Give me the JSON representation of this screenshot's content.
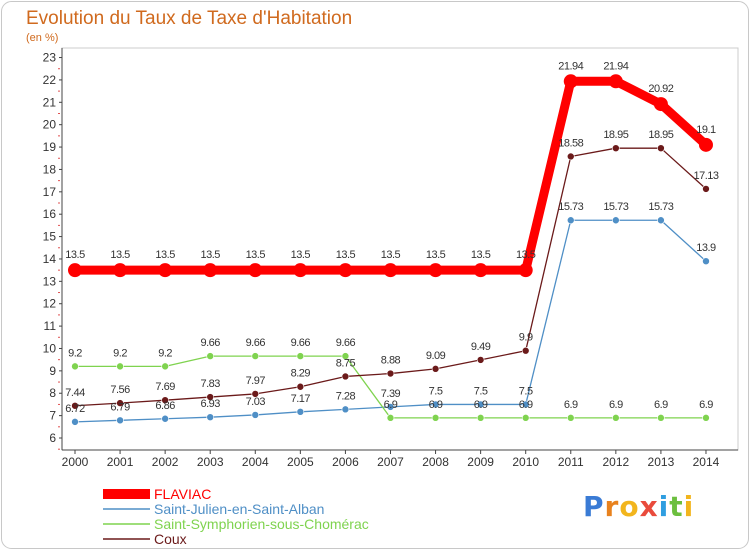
{
  "chart_data": {
    "type": "line",
    "title": "Evolution du Taux de Taxe d'Habitation",
    "subtitle": "(en %)",
    "x": [
      "2000",
      "2001",
      "2002",
      "2003",
      "2004",
      "2005",
      "2006",
      "2007",
      "2008",
      "2009",
      "2010",
      "2011",
      "2012",
      "2013",
      "2014"
    ],
    "ylim": [
      6,
      23
    ],
    "yticks": [
      6,
      7,
      8,
      9,
      10,
      11,
      12,
      13,
      14,
      15,
      16,
      17,
      18,
      19,
      20,
      21,
      22,
      23
    ],
    "grid": false,
    "legend_position": "bottom-left",
    "series": [
      {
        "name": "FLAVIAC",
        "color": "#ff0000",
        "values": [
          13.5,
          13.5,
          13.5,
          13.5,
          13.5,
          13.5,
          13.5,
          13.5,
          13.5,
          13.5,
          13.5,
          21.94,
          21.94,
          20.92,
          19.1
        ],
        "labels": [
          "13.5",
          "13.5",
          "13.5",
          "13.5",
          "13.5",
          "13.5",
          "13.5",
          "13.5",
          "13.5",
          "13.5",
          "13.5",
          "21.94",
          "21.94",
          "20.92",
          "19.1"
        ]
      },
      {
        "name": "Saint-Julien-en-Saint-Alban",
        "color": "#4f8fc6",
        "values": [
          6.72,
          6.79,
          6.86,
          6.93,
          7.03,
          7.17,
          7.28,
          7.39,
          7.5,
          7.5,
          7.5,
          15.73,
          15.73,
          15.73,
          13.9
        ],
        "labels": [
          "6.72",
          "6.79",
          "6.86",
          "6.93",
          "7.03",
          "7.17",
          "7.28",
          "7.39",
          "7.5",
          "7.5",
          "7.5",
          "15.73",
          "15.73",
          "15.73",
          "13.9"
        ]
      },
      {
        "name": "Saint-Symphorien-sous-Chomérac",
        "color": "#7fd34f",
        "values": [
          9.2,
          9.2,
          9.2,
          9.66,
          9.66,
          9.66,
          9.66,
          6.9,
          6.9,
          6.9,
          6.9,
          6.9,
          6.9,
          6.9,
          6.9
        ],
        "labels": [
          "9.2",
          "9.2",
          "9.2",
          "9.66",
          "9.66",
          "9.66",
          "9.66",
          "6.9",
          "6.9",
          "6.9",
          "6.9",
          "6.9",
          "6.9",
          "6.9",
          "6.9"
        ]
      },
      {
        "name": "Coux",
        "color": "#6b1a1a",
        "values": [
          7.44,
          7.56,
          7.69,
          7.83,
          7.97,
          8.29,
          8.75,
          8.88,
          9.09,
          9.49,
          9.9,
          18.58,
          18.95,
          18.95,
          17.13
        ],
        "labels": [
          "7.44",
          "7.56",
          "7.69",
          "7.83",
          "7.97",
          "8.29",
          "8.75",
          "8.88",
          "9.09",
          "9.49",
          "9.9",
          "18.58",
          "18.95",
          "18.95",
          "17.13"
        ]
      }
    ]
  },
  "logo": {
    "text": "Proxiti"
  },
  "colors": {
    "axis": "#444444",
    "plot_border": "#bbbbbb",
    "title": "#d06a1e"
  }
}
